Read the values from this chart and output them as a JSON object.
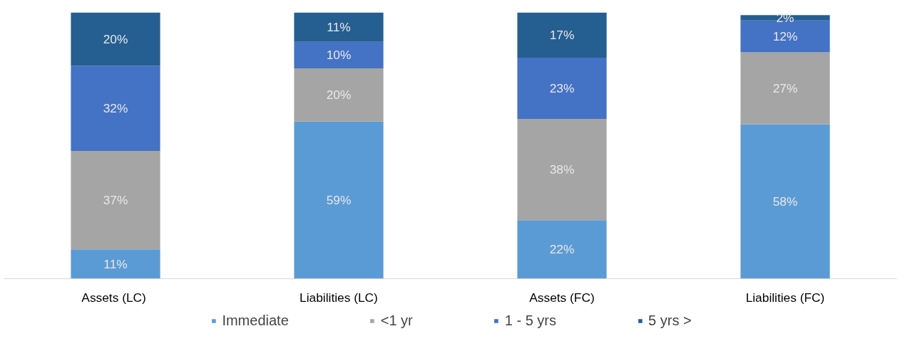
{
  "chart_data": {
    "type": "bar",
    "stacked": true,
    "categories": [
      "Assets  (LC)",
      "Liabilities (LC)",
      "Assets (FC)",
      "Liabilities (FC)"
    ],
    "series": [
      {
        "name": "Immediate",
        "color": "#5b9bd5",
        "values": [
          11,
          59,
          22,
          58
        ],
        "value_labels": [
          "11%",
          "59%",
          "22%",
          "58%"
        ]
      },
      {
        "name": "<1 yr",
        "color": "#a5a5a5",
        "values": [
          37,
          20,
          38,
          27
        ],
        "value_labels": [
          "37%",
          "20%",
          "38%",
          "27%"
        ]
      },
      {
        "name": "1 - 5 yrs",
        "color": "#4472c4",
        "values": [
          32,
          10,
          23,
          12
        ],
        "value_labels": [
          "32%",
          "10%",
          "23%",
          "12%"
        ]
      },
      {
        "name": "5 yrs >",
        "color": "#255e91",
        "values": [
          20,
          11,
          17,
          2
        ],
        "value_labels": [
          "20%",
          "11%",
          "17%",
          "2%"
        ]
      }
    ],
    "legend": "bottom",
    "grid": false,
    "tick_labels": "x"
  }
}
